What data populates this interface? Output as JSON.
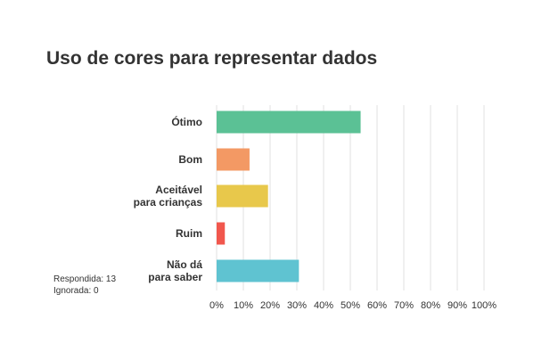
{
  "title": "Uso de cores para representar dados",
  "stats": {
    "answered": "Respondida: 13",
    "skipped": "Ignorada: 0"
  },
  "colors": {
    "otimo": "#5bc195",
    "bom": "#f39964",
    "aceitavel": "#e8c84b",
    "ruim": "#f1574d",
    "nao_da": "#5fc3d1",
    "grid": "#e2e2e2"
  },
  "chart_data": {
    "type": "bar",
    "orientation": "horizontal",
    "title": "Uso de cores para representar dados",
    "categories": [
      [
        "Ótimo"
      ],
      [
        "Bom"
      ],
      [
        "Aceitável",
        "para crianças"
      ],
      [
        "Ruim"
      ],
      [
        "Não dá",
        "para saber"
      ]
    ],
    "values": [
      53.85,
      12.31,
      19.23,
      3.08,
      30.77
    ],
    "bar_colors": [
      "#5bc195",
      "#f39964",
      "#e8c84b",
      "#f1574d",
      "#5fc3d1"
    ],
    "xlim": [
      0,
      100
    ],
    "x_ticks": [
      "0%",
      "10%",
      "20%",
      "30%",
      "40%",
      "50%",
      "60%",
      "70%",
      "80%",
      "90%",
      "100%"
    ],
    "grid": true
  }
}
